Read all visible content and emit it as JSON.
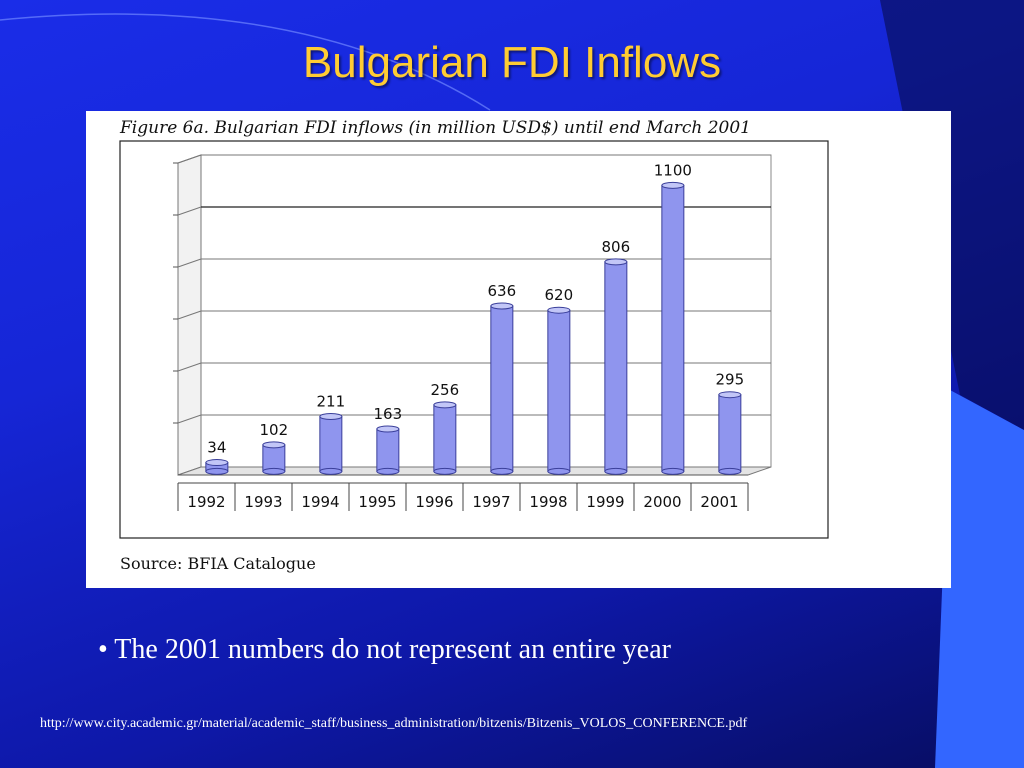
{
  "slide": {
    "title": "Bulgarian FDI Inflows",
    "bullet": "• The 2001 numbers do not represent an entire year",
    "url": "http://www.city.academic.gr/material/academic_staff/business_administration/bitzenis/Bitzenis_VOLOS_CONFERENCE.pdf",
    "colors": {
      "title": "#ffcc33",
      "background": "#1626d6",
      "accent_shape": "#3366ff",
      "bar_fill": "#8f95ee",
      "bar_top": "#c2c6f7"
    }
  },
  "figure": {
    "title": "Figure 6a. Bulgarian FDI inflows (in million USD$) until end March 2001",
    "source": "Source: BFIA Catalogue"
  },
  "chart_data": {
    "type": "bar",
    "categories": [
      "1992",
      "1993",
      "1994",
      "1995",
      "1996",
      "1997",
      "1998",
      "1999",
      "2000",
      "2001"
    ],
    "values": [
      34,
      102,
      211,
      163,
      256,
      636,
      620,
      806,
      1100,
      295
    ],
    "data_labels": [
      "34",
      "102",
      "211",
      "163",
      "256",
      "636",
      "620",
      "806",
      "1100",
      "295"
    ],
    "ylim": [
      0,
      1200
    ],
    "grid": true,
    "style": "3d-cylinder"
  }
}
